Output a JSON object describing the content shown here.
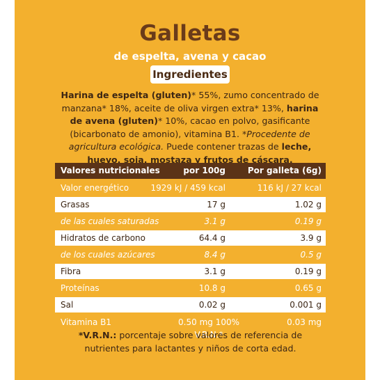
{
  "title": "Galletas",
  "subtitle": "de espelta, avena y cacao",
  "ingredients_heading": "Ingredientes",
  "ingredients": {
    "p1_b": "Harina de espelta (gluten)",
    "p2": "* 55%, zumo concentrado de manzana* 18%, aceite de oliva virgen extra* 13%, ",
    "p3_b": "harina de avena (gluten)",
    "p4": "* 10%, cacao en polvo, gasificante (bicarbonato de amonio), vitamina B1. ",
    "p5_i": "*Procedente de agricultura ecológica.",
    "p6": " Puede contener trazas de ",
    "p7_b": "leche, huevo, soja, mostaza y frutos de cáscara."
  },
  "table": {
    "header": [
      "Valores nutricionales",
      "por 100g",
      "Por galleta (6g)"
    ],
    "rows": [
      {
        "label": "Valor energético",
        "per100": "1929 kJ / 459 kcal",
        "perUnit": "116 kJ / 27 kcal"
      },
      {
        "label": "Grasas",
        "per100": "17 g",
        "perUnit": "1.02 g"
      },
      {
        "label": "de las cuales saturadas",
        "per100": "3.1 g",
        "perUnit": "0.19 g"
      },
      {
        "label": "Hidratos de carbono",
        "per100": "64.4 g",
        "perUnit": "3.9 g"
      },
      {
        "label": "de los cuales azúcares",
        "per100": "8.4 g",
        "perUnit": "0.5 g"
      },
      {
        "label": "Fibra",
        "per100": "3.1 g",
        "perUnit": "0.19 g"
      },
      {
        "label": "Proteínas",
        "per100": "10.8 g",
        "perUnit": "0.65 g"
      },
      {
        "label": "Sal",
        "per100": "0.02 g",
        "perUnit": "0.001 g"
      }
    ],
    "vitamin": {
      "label": "Vitamina B1",
      "per100_a": "0.50 mg 100%",
      "per100_b": "V.R.N.*",
      "perUnit": "0.03 mg"
    }
  },
  "footnote": {
    "b": "*V.R.N.:",
    "text": " porcentaje sobre valores de referencia de nutrientes para lactantes y niños de corta edad."
  }
}
